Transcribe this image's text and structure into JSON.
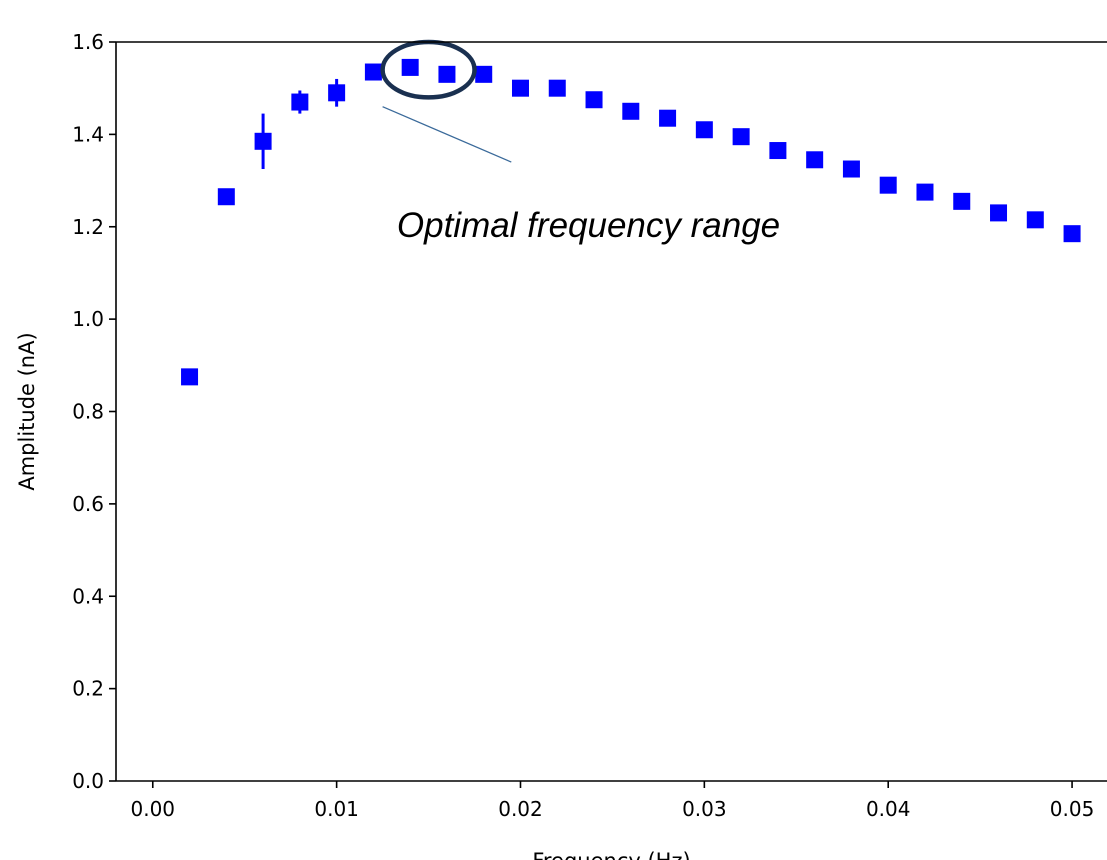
{
  "chart_data": {
    "type": "scatter",
    "title": "",
    "xlabel": "Frequency (Hz)",
    "ylabel": "Amplitude (nA)",
    "xlim": [
      -0.002,
      0.0519
    ],
    "ylim": [
      0.0,
      1.6
    ],
    "xticks": [
      "0.00",
      "0.01",
      "0.02",
      "0.03",
      "0.04",
      "0.05"
    ],
    "yticks": [
      "0.0",
      "0.2",
      "0.4",
      "0.6",
      "0.8",
      "1.0",
      "1.2",
      "1.4",
      "1.6"
    ],
    "grid": false,
    "marker_color": "#0000ff",
    "marker": "square",
    "series": [
      {
        "x": [
          0.002,
          0.004,
          0.006,
          0.008,
          0.01,
          0.012,
          0.014,
          0.016,
          0.018,
          0.02,
          0.022,
          0.024,
          0.026,
          0.028,
          0.03,
          0.032,
          0.034,
          0.036,
          0.038,
          0.04,
          0.042,
          0.044,
          0.046,
          0.048,
          0.05
        ],
        "y": [
          0.875,
          1.265,
          1.385,
          1.47,
          1.49,
          1.535,
          1.545,
          1.53,
          1.53,
          1.5,
          1.5,
          1.475,
          1.45,
          1.435,
          1.41,
          1.395,
          1.365,
          1.345,
          1.325,
          1.29,
          1.275,
          1.255,
          1.23,
          1.215,
          1.185
        ],
        "err": [
          0.0,
          0.0,
          0.06,
          0.025,
          0.03,
          0.0,
          0.0,
          0.0,
          0.0,
          0.0,
          0.0,
          0.0,
          0.0,
          0.0,
          0.0,
          0.0,
          0.0,
          0.0,
          0.0,
          0.0,
          0.0,
          0.0,
          0.0,
          0.0,
          0.0
        ]
      }
    ],
    "annotation": {
      "text": "Optimal frequency range",
      "ellipse_center": [
        0.015,
        1.54
      ],
      "ellipse_radius": [
        0.0025,
        0.06
      ],
      "ellipse_color": "#1a3050",
      "arrow_from": [
        0.0125,
        1.46
      ],
      "arrow_to": [
        0.0195,
        1.34
      ],
      "text_anchor": [
        0.0237,
        1.2
      ],
      "arrow_color": "#3a6a9a"
    }
  }
}
